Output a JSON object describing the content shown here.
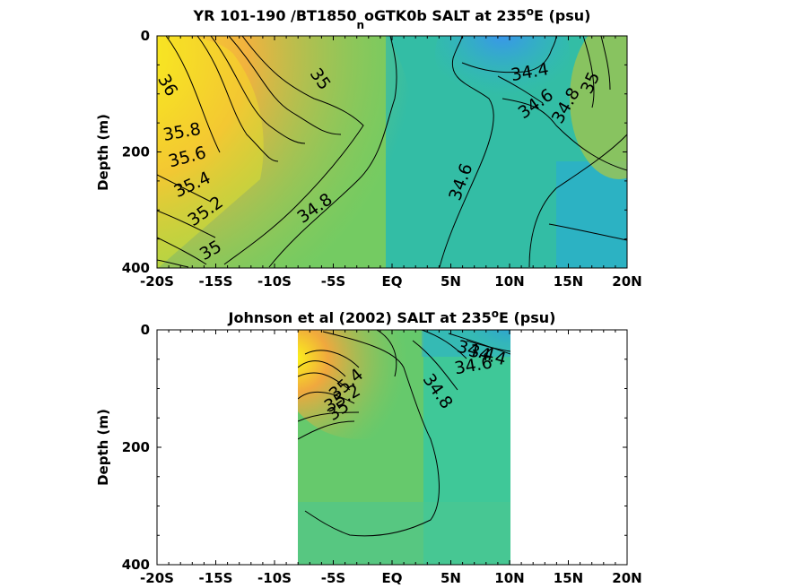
{
  "chart_data": [
    {
      "type": "heatmap",
      "title": {
        "main": "YR 101-190 /BT1850",
        "sub": "n",
        "rest": "oGTK0b SALT at 235",
        "sup": "o",
        "tail": "E (psu)"
      },
      "ylabel": "Depth (m)",
      "xlim": [
        -20,
        20
      ],
      "ylim": [
        400,
        0
      ],
      "x_ticks": [
        "-20S",
        "-15S",
        "-10S",
        "-5S",
        "EQ",
        "5N",
        "10N",
        "15N",
        "20N"
      ],
      "y_ticks": [
        "0",
        "200",
        "400"
      ],
      "data_extent_x": [
        -20,
        20
      ],
      "contour_labels": [
        {
          "text": "36",
          "x": -19.5,
          "depth": 90,
          "angle": 60
        },
        {
          "text": "35",
          "x": -6.5,
          "depth": 80,
          "angle": 55
        },
        {
          "text": "35.8",
          "x": -17.8,
          "depth": 175,
          "angle": -10
        },
        {
          "text": "35.6",
          "x": -17.3,
          "depth": 218,
          "angle": -15
        },
        {
          "text": "35.4",
          "x": -16.8,
          "depth": 265,
          "angle": -25
        },
        {
          "text": "35.2",
          "x": -15.6,
          "depth": 310,
          "angle": -35
        },
        {
          "text": "34.8",
          "x": -6.3,
          "depth": 305,
          "angle": -35
        },
        {
          "text": "35",
          "x": -15.2,
          "depth": 378,
          "angle": -30
        },
        {
          "text": "34.6",
          "x": 6.3,
          "depth": 255,
          "angle": -70
        },
        {
          "text": "34.4",
          "x": 11.8,
          "depth": 72,
          "angle": -10
        },
        {
          "text": "34.6",
          "x": 12.5,
          "depth": 125,
          "angle": -35
        },
        {
          "text": "34.8",
          "x": 15.2,
          "depth": 125,
          "angle": -60
        },
        {
          "text": "35",
          "x": 17.3,
          "depth": 85,
          "angle": -65
        }
      ]
    },
    {
      "type": "heatmap",
      "title": {
        "main": "Johnson et al (2002) SALT at 235",
        "sup": "o",
        "tail": "E (psu)"
      },
      "ylabel": "Depth (m)",
      "xlim": [
        -20,
        20
      ],
      "ylim": [
        400,
        0
      ],
      "x_ticks": [
        "-20S",
        "-15S",
        "-10S",
        "-5S",
        "EQ",
        "5N",
        "10N",
        "15N",
        "20N"
      ],
      "y_ticks": [
        "0",
        "200",
        "400"
      ],
      "data_extent_x": [
        -8,
        10
      ],
      "contour_labels": [
        {
          "text": "35.4",
          "x": -3.6,
          "depth": 100,
          "angle": -40
        },
        {
          "text": "35.2",
          "x": -4.0,
          "depth": 125,
          "angle": -30
        },
        {
          "text": "35",
          "x": -4.3,
          "depth": 145,
          "angle": -35
        },
        {
          "text": "34.8",
          "x": 3.5,
          "depth": 110,
          "angle": 55
        },
        {
          "text": "34.4",
          "x": 7.0,
          "depth": 45,
          "angle": 15
        },
        {
          "text": "34.6",
          "x": 7.0,
          "depth": 70,
          "angle": -10
        },
        {
          "text": "34.4",
          "x": 8.0,
          "depth": 52,
          "angle": 15
        }
      ]
    }
  ]
}
